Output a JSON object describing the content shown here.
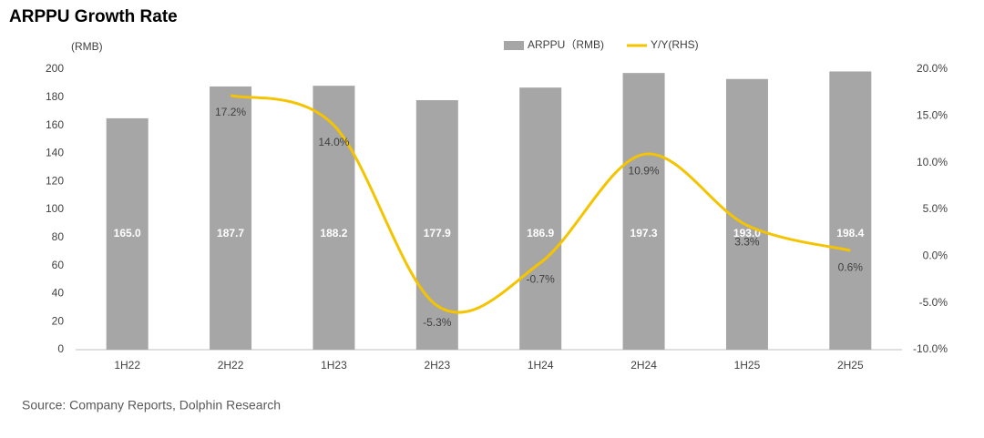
{
  "chart_data": {
    "type": "bar-line",
    "title": "ARPPU Growth Rate",
    "y_label": "(RMB)",
    "source": "Source: Company Reports, Dolphin Research",
    "categories": [
      "1H22",
      "2H22",
      "1H23",
      "2H23",
      "1H24",
      "2H24",
      "1H25",
      "2H25"
    ],
    "series": [
      {
        "name": "ARPPU（RMB)",
        "type": "bar",
        "color": "#a6a6a6",
        "values": [
          165.0,
          187.7,
          188.2,
          177.9,
          186.9,
          197.3,
          193.0,
          198.4
        ],
        "value_labels": [
          "165.0",
          "187.7",
          "188.2",
          "177.9",
          "186.9",
          "197.3",
          "193.0",
          "198.4"
        ]
      },
      {
        "name": "Y/Y(RHS)",
        "type": "line",
        "axis": "y2",
        "color": "#f5c400",
        "values": [
          null,
          17.2,
          14.0,
          -5.3,
          -0.7,
          10.9,
          3.3,
          0.6
        ],
        "value_labels": [
          null,
          "17.2%",
          "14.0%",
          "-5.3%",
          "-0.7%",
          "10.9%",
          "3.3%",
          "0.6%"
        ]
      }
    ],
    "ylim": [
      0,
      200
    ],
    "yticks": [
      0,
      20,
      40,
      60,
      80,
      100,
      120,
      140,
      160,
      180,
      200
    ],
    "y2lim": [
      -10,
      20
    ],
    "y2ticks": [
      {
        "value": -10,
        "label": "-10.0%"
      },
      {
        "value": -5,
        "label": "-5.0%"
      },
      {
        "value": 0,
        "label": "0.0%"
      },
      {
        "value": 5,
        "label": "5.0%"
      },
      {
        "value": 10,
        "label": "10.0%"
      },
      {
        "value": 15,
        "label": "15.0%"
      },
      {
        "value": 20,
        "label": "20.0%"
      }
    ],
    "grid": false
  }
}
